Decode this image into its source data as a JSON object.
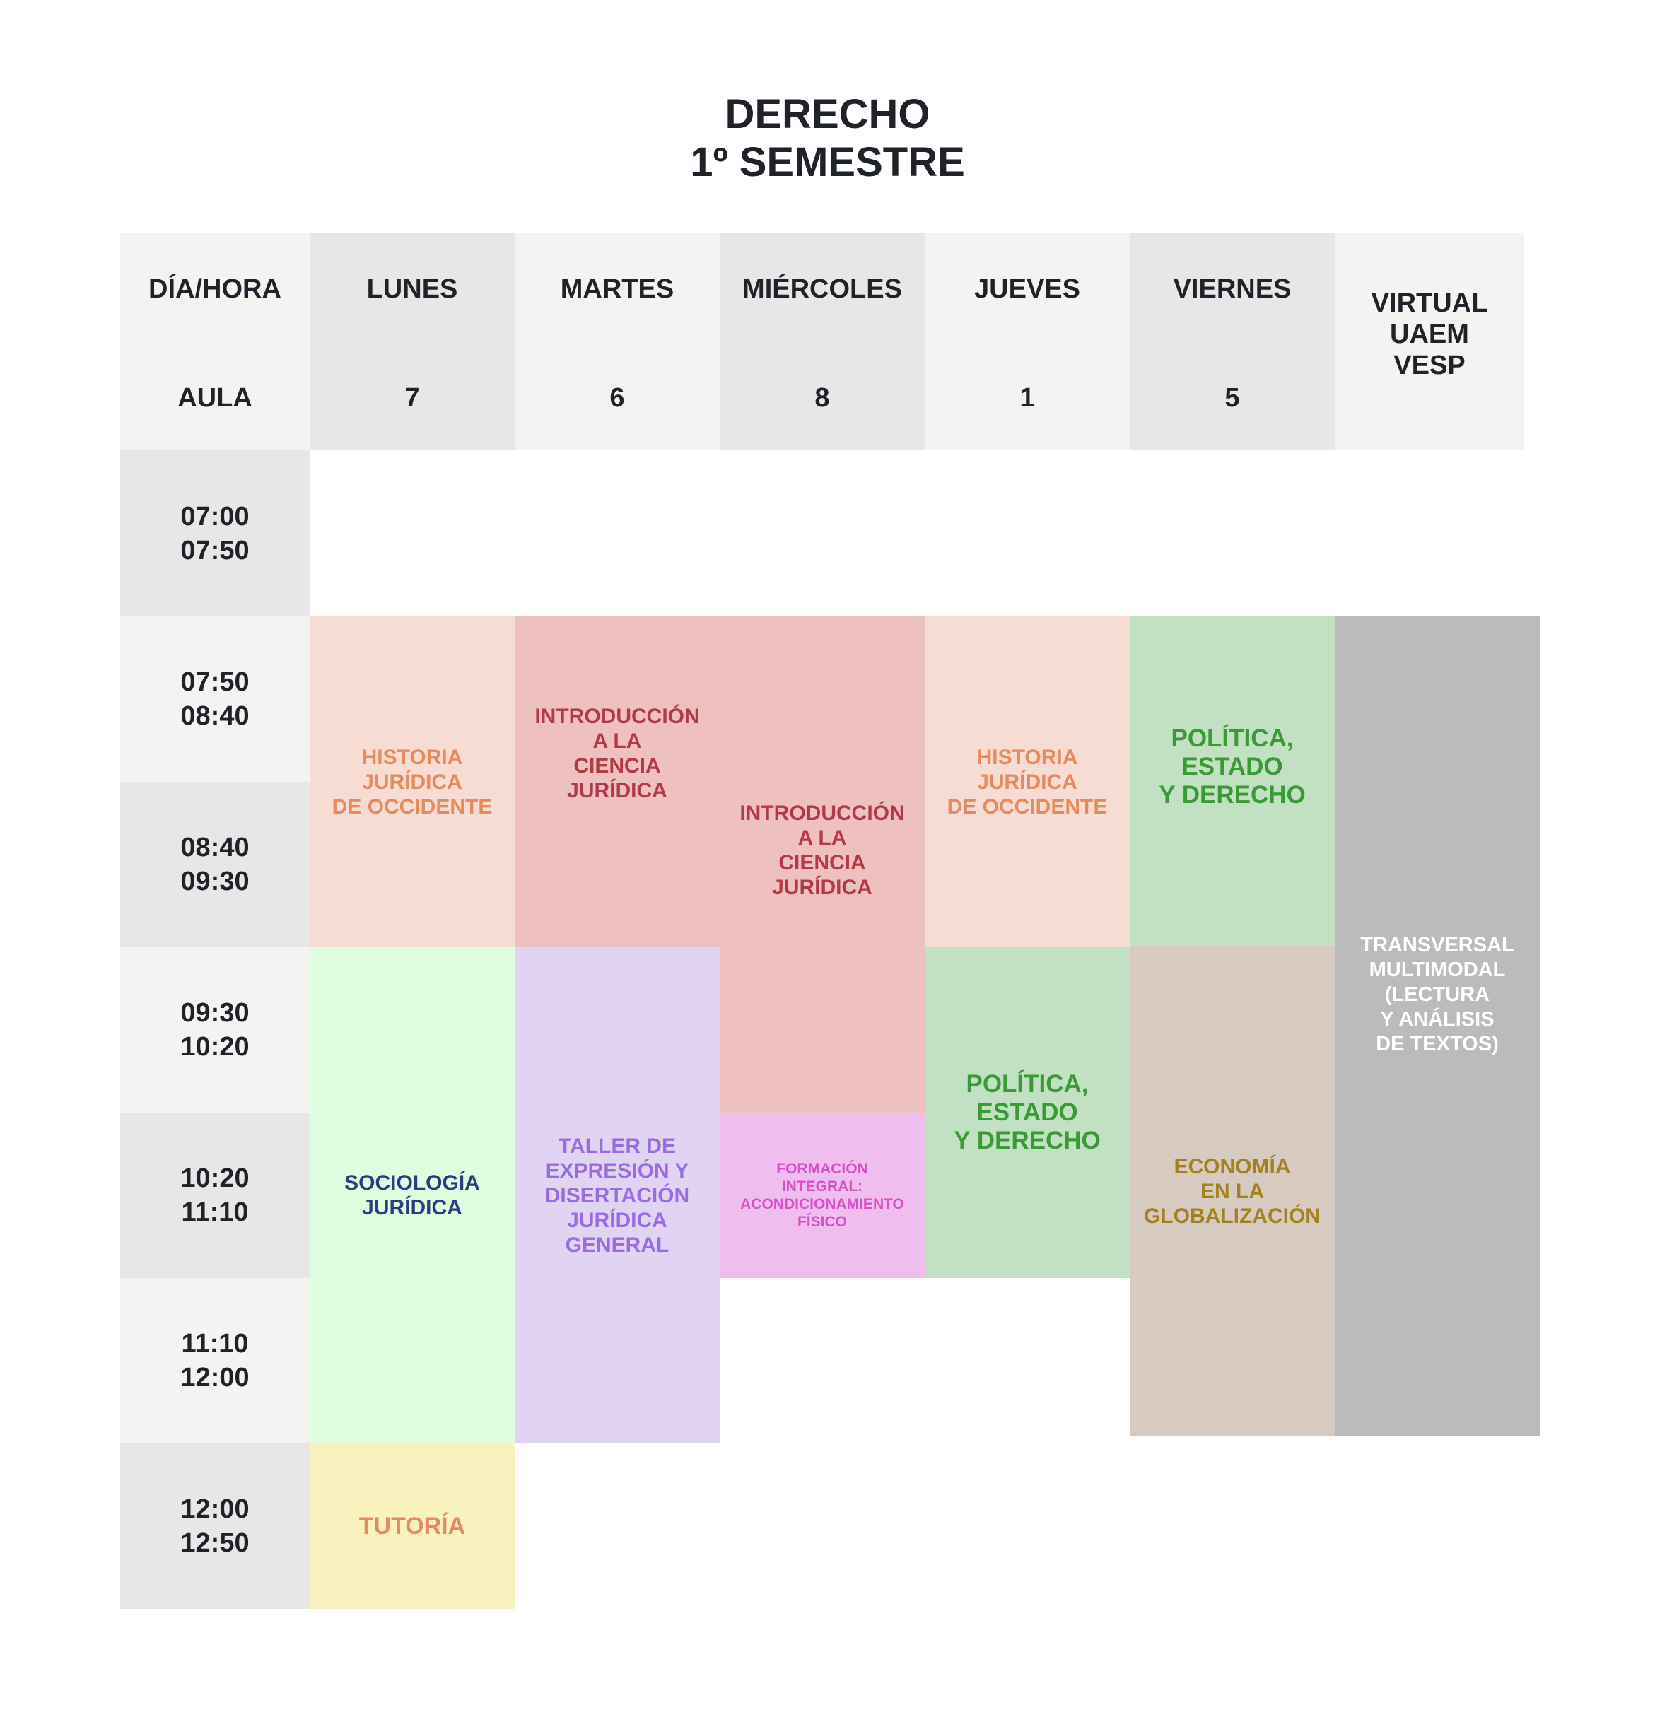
{
  "title": {
    "line1": "DERECHO",
    "line2": "1º SEMESTRE"
  },
  "header": {
    "corner_top": "DÍA/HORA",
    "corner_bottom": "AULA",
    "days": [
      {
        "name": "LUNES",
        "aula": "7"
      },
      {
        "name": "MARTES",
        "aula": "6"
      },
      {
        "name": "MIÉRCOLES",
        "aula": "8"
      },
      {
        "name": "JUEVES",
        "aula": "1"
      },
      {
        "name": "VIERNES",
        "aula": "5"
      }
    ],
    "virtual": "VIRTUAL\nUAEM\nVESP"
  },
  "times": [
    "07:00\n07:50",
    "07:50\n08:40",
    "08:40\n09:30",
    "09:30\n10:20",
    "10:20\n11:10",
    "11:10\n12:00",
    "12:00\n12:50"
  ],
  "subjects": {
    "lunes_historia": "HISTORIA\nJURÍDICA\nDE OCCIDENTE",
    "martes_intro": "INTRODUCCIÓN\nA LA\nCIENCIA\nJURÍDICA",
    "miercoles_intro": "INTRODUCCIÓN\nA LA\nCIENCIA\nJURÍDICA",
    "jueves_historia": "HISTORIA\nJURÍDICA\nDE OCCIDENTE",
    "viernes_politica": "POLÍTICA,\nESTADO\nY DERECHO",
    "virtual_transversal": "TRANSVERSAL\nMULTIMODAL\n(LECTURA\nY ANÁLISIS\nDE TEXTOS)",
    "lunes_sociologia": "SOCIOLOGÍA\nJURÍDICA",
    "martes_taller": "TALLER DE\nEXPRESIÓN Y\nDISERTACIÓN\nJURÍDICA\nGENERAL",
    "miercoles_formacion": "FORMACIÓN\nINTEGRAL:\nACONDICIONAMIENTO\nFÍSICO",
    "jueves_politica": "POLÍTICA,\nESTADO\nY DERECHO",
    "viernes_economia": "ECONOMÍA\nEN LA\nGLOBALIZACIÓN",
    "lunes_tutoria": "TUTORÍA"
  },
  "colors": {
    "header_light": "#f3f3f2",
    "header_dark": "#e7e7e7",
    "historia_bg": "#f6dcd2",
    "historia_text": "#e48b5f",
    "intro_bg": "#efc0c0",
    "intro_text": "#b23a46",
    "politica_bg": "#c2e0c2",
    "politica_text": "#3a9a36",
    "transversal_bg": "#bbbbbb",
    "transversal_text": "#ffffff",
    "sociologia_bg": "#e0fde0",
    "sociologia_text": "#2e3c84",
    "taller_bg": "#e1d4f3",
    "taller_text": "#9b6be3",
    "formacion_bg": "#efbdee",
    "formacion_text": "#d451c9",
    "economia_bg": "#d6cac1",
    "economia_text": "#a4811c",
    "tutoria_bg": "#f8f3be",
    "tutoria_text": "#e48b5f"
  }
}
